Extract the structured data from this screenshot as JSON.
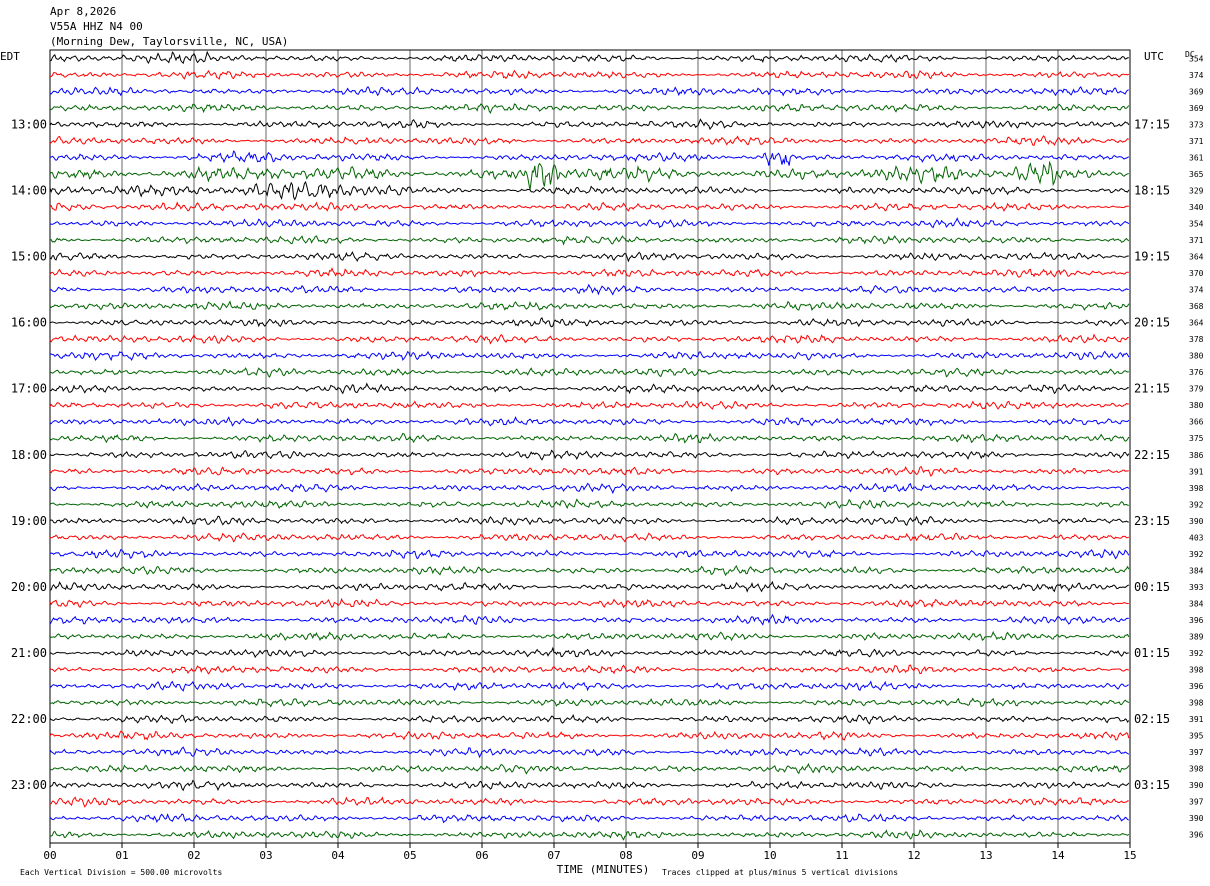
{
  "header": {
    "date": "Apr 8,2026",
    "station": "V55A HHZ N4 00",
    "location": "(Morning Dew, Taylorsville, NC, USA)"
  },
  "chart_data": {
    "type": "line",
    "description_of_axes": "",
    "left_timezone_label": "EDT",
    "right_timezone_label": "UTC",
    "dc_label": "DC",
    "xlabel": "TIME (MINUTES)",
    "x_ticks": [
      "00",
      "01",
      "02",
      "03",
      "04",
      "05",
      "06",
      "07",
      "08",
      "09",
      "10",
      "11",
      "12",
      "13",
      "14",
      "15"
    ],
    "xlim": [
      0,
      15
    ],
    "row_colors": [
      "#000000",
      "#ff0000",
      "#0000ff",
      "#006400"
    ],
    "left_hour_labels": [
      "13:00",
      "14:00",
      "15:00",
      "16:00",
      "17:00",
      "18:00",
      "19:00",
      "20:00",
      "21:00",
      "22:00",
      "23:00"
    ],
    "right_hour_labels": [
      "17:15",
      "18:15",
      "19:15",
      "20:15",
      "21:15",
      "22:15",
      "23:15",
      "00:15",
      "01:15",
      "02:15",
      "03:15"
    ],
    "dc_offsets": [
      354,
      374,
      369,
      369,
      373,
      371,
      361,
      365,
      329,
      340,
      354,
      371,
      364,
      370,
      374,
      368,
      364,
      378,
      380,
      376,
      379,
      380,
      366,
      375,
      386,
      391,
      398,
      392,
      390,
      403,
      392,
      384,
      393,
      384,
      396,
      389,
      392,
      398,
      396,
      398,
      391,
      395,
      397,
      398,
      390,
      397,
      390,
      396
    ],
    "events": [
      {
        "row": 0,
        "start_min": 0.0,
        "end_min": 2.2,
        "amp": 1.4
      },
      {
        "row": 6,
        "start_min": 1.9,
        "end_min": 3.2,
        "amp": 1.6
      },
      {
        "row": 6,
        "start_min": 9.9,
        "end_min": 10.3,
        "amp": 4.0
      },
      {
        "row": 7,
        "start_min": 0.0,
        "end_min": 15.0,
        "amp": 1.8
      },
      {
        "row": 7,
        "start_min": 6.6,
        "end_min": 7.1,
        "amp": 3.0
      },
      {
        "row": 7,
        "start_min": 13.4,
        "end_min": 14.0,
        "amp": 3.0
      },
      {
        "row": 8,
        "start_min": 0.0,
        "end_min": 5.0,
        "amp": 2.2
      },
      {
        "row": 9,
        "start_min": 0.0,
        "end_min": 3.0,
        "amp": 1.5
      }
    ],
    "footer_left": "Each Vertical Division =  500.00 microvolts",
    "footer_right": "Traces clipped at plus/minus 5 vertical divisions"
  }
}
